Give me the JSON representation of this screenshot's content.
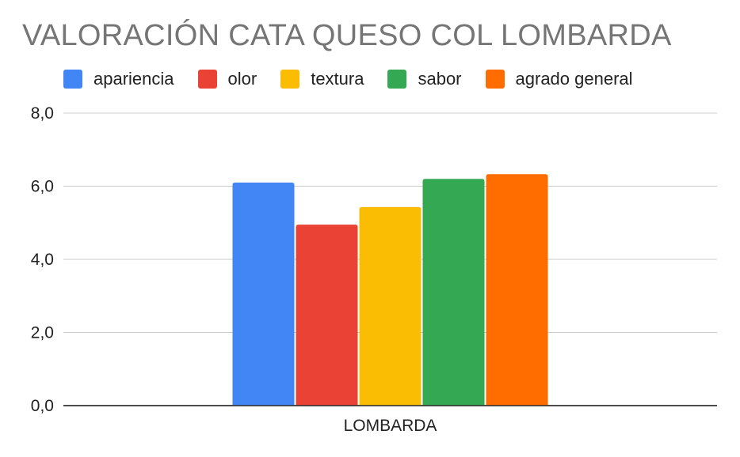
{
  "chart_data": {
    "type": "bar",
    "title": "VALORACIÓN CATA QUESO COL LOMBARDA",
    "categories": [
      "LOMBARDA"
    ],
    "series": [
      {
        "name": "apariencia",
        "color": "#4285F4",
        "values": [
          6.1
        ]
      },
      {
        "name": "olor",
        "color": "#EA4335",
        "values": [
          4.95
        ]
      },
      {
        "name": "textura",
        "color": "#FBBC04",
        "values": [
          5.43
        ]
      },
      {
        "name": "sabor",
        "color": "#34A853",
        "values": [
          6.2
        ]
      },
      {
        "name": "agrado general",
        "color": "#FF6D01",
        "values": [
          6.33
        ]
      }
    ],
    "ylim": [
      0,
      8
    ],
    "yticks": [
      "0,0",
      "2,0",
      "4,0",
      "6,0",
      "8,0"
    ],
    "ytick_values": [
      0,
      2,
      4,
      6,
      8
    ],
    "xlabel": "",
    "ylabel": "",
    "grid": true,
    "legend_position": "top"
  }
}
